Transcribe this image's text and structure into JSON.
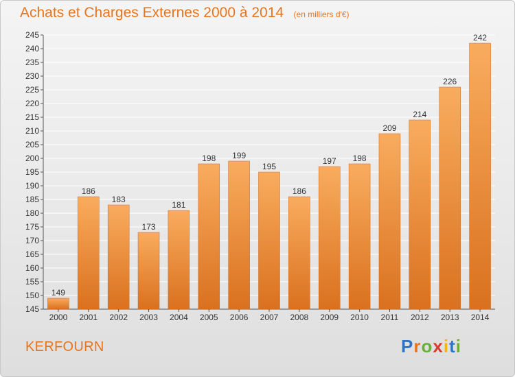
{
  "title": "Achats et Charges Externes 2000 à 2014",
  "subtitle": "(en milliers d'€)",
  "place": "KERFOURN",
  "brand": {
    "text": "Proxiti",
    "letter_colors": [
      "#2e75c7",
      "#e8741c",
      "#6cae3a",
      "#d63b2f",
      "#f2b31b",
      "#2e75c7",
      "#6cae3a"
    ]
  },
  "colors": {
    "accent": "#e8741c",
    "bar_top": "#f9ac5e",
    "bar_bottom": "#d9711f",
    "grid": "#ffffff",
    "axis": "#555555"
  },
  "chart_data": {
    "type": "bar",
    "categories": [
      "2000",
      "2001",
      "2002",
      "2003",
      "2004",
      "2005",
      "2006",
      "2007",
      "2008",
      "2009",
      "2010",
      "2011",
      "2012",
      "2013",
      "2014"
    ],
    "values": [
      149,
      186,
      183,
      173,
      181,
      198,
      199,
      195,
      186,
      197,
      198,
      209,
      214,
      226,
      242
    ],
    "title": "Achats et Charges Externes 2000 à 2014",
    "xlabel": "",
    "ylabel": "",
    "ylim": [
      145,
      245
    ],
    "yticks": [
      145,
      150,
      155,
      160,
      165,
      170,
      175,
      180,
      185,
      190,
      195,
      200,
      205,
      210,
      215,
      220,
      225,
      230,
      235,
      240,
      245
    ],
    "grid": true,
    "data_labels": true
  }
}
